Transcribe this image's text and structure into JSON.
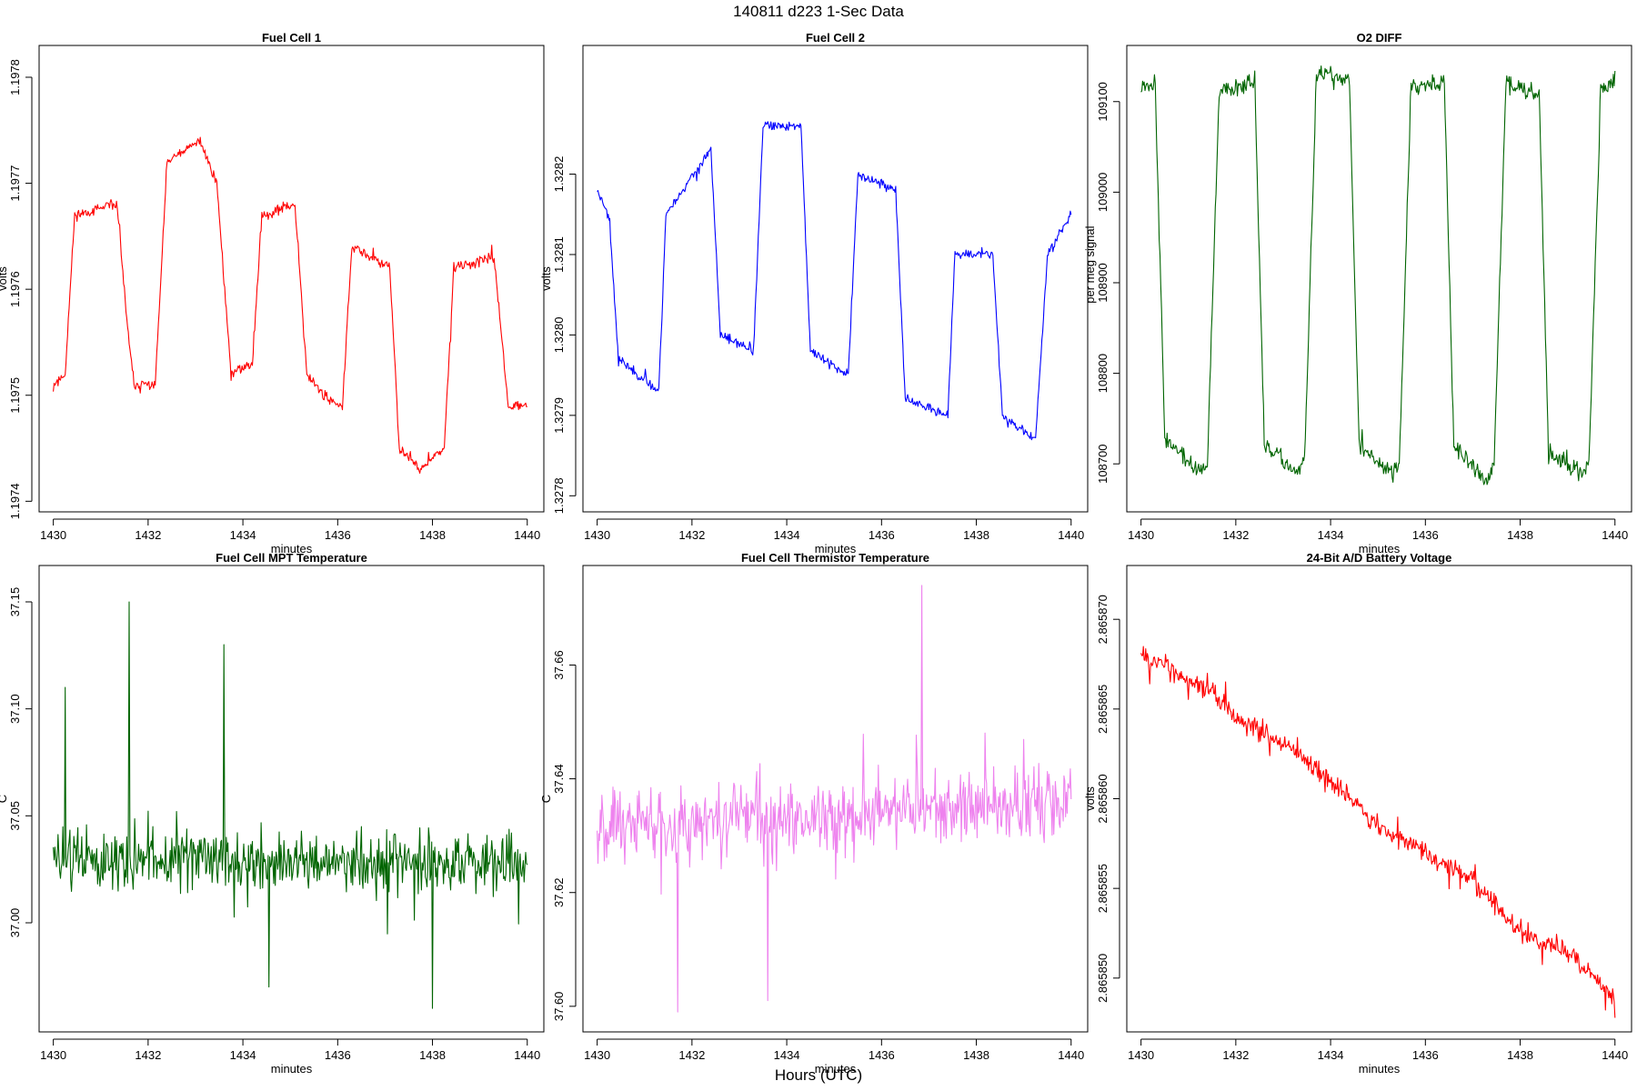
{
  "suptitle": "140811   d223   1-Sec Data",
  "global_xlabel": "Hours (UTC)",
  "colors": {
    "red": "#ff0000",
    "blue": "#0000ff",
    "green": "#006400",
    "violet": "#ee82ee"
  },
  "chart_data": [
    {
      "id": "fc1",
      "type": "line",
      "title": "Fuel Cell 1",
      "xlabel": "minutes",
      "ylabel": "volts",
      "color": "#ff0000",
      "xlim": [
        1429.7,
        1440.35
      ],
      "ylim": [
        1.19739,
        1.19783
      ],
      "xticks": [
        1430,
        1432,
        1434,
        1436,
        1438,
        1440
      ],
      "xticklabels": [
        "1430",
        "1432",
        "1434",
        "1436",
        "1438",
        "1440"
      ],
      "yticks": [
        1.1974,
        1.1975,
        1.1976,
        1.1977,
        1.1978
      ],
      "yticklabels": [
        "1.1974",
        "1.1975",
        "1.1976",
        "1.1977",
        "1.1978"
      ],
      "levels": [
        [
          1430.0,
          1.19751
        ],
        [
          1430.25,
          1.19752
        ],
        [
          1430.45,
          1.19767
        ],
        [
          1431.35,
          1.19768
        ],
        [
          1431.55,
          1.19757
        ],
        [
          1431.7,
          1.19751
        ],
        [
          1432.15,
          1.19751
        ],
        [
          1432.4,
          1.19772
        ],
        [
          1433.1,
          1.19774
        ],
        [
          1433.45,
          1.1977
        ],
        [
          1433.75,
          1.19752
        ],
        [
          1434.2,
          1.19753
        ],
        [
          1434.4,
          1.19767
        ],
        [
          1435.1,
          1.19768
        ],
        [
          1435.35,
          1.19752
        ],
        [
          1435.7,
          1.1975
        ],
        [
          1436.1,
          1.19749
        ],
        [
          1436.3,
          1.19764
        ],
        [
          1437.1,
          1.19762
        ],
        [
          1437.3,
          1.19745
        ],
        [
          1437.75,
          1.19743
        ],
        [
          1438.25,
          1.19745
        ],
        [
          1438.45,
          1.19762
        ],
        [
          1439.3,
          1.19763
        ],
        [
          1439.6,
          1.19749
        ],
        [
          1440.0,
          1.19749
        ]
      ],
      "noise": 7e-06,
      "seed": 11
    },
    {
      "id": "fc2",
      "type": "line",
      "title": "Fuel Cell 2",
      "xlabel": "minutes",
      "ylabel": "volts",
      "color": "#0000ff",
      "xlim": [
        1429.7,
        1440.35
      ],
      "ylim": [
        1.32778,
        1.32836
      ],
      "xticks": [
        1430,
        1432,
        1434,
        1436,
        1438,
        1440
      ],
      "xticklabels": [
        "1430",
        "1432",
        "1434",
        "1436",
        "1438",
        "1440"
      ],
      "yticks": [
        1.3278,
        1.3279,
        1.328,
        1.3281,
        1.3282
      ],
      "yticklabels": [
        "1.3278",
        "1.3279",
        "1.3280",
        "1.3281",
        "1.3282"
      ],
      "levels": [
        [
          1430.0,
          1.32818
        ],
        [
          1430.25,
          1.32815
        ],
        [
          1430.45,
          1.32797
        ],
        [
          1431.3,
          1.32793
        ],
        [
          1431.45,
          1.32815
        ],
        [
          1432.4,
          1.32823
        ],
        [
          1432.6,
          1.328
        ],
        [
          1433.3,
          1.32798
        ],
        [
          1433.5,
          1.32826
        ],
        [
          1434.3,
          1.32826
        ],
        [
          1434.5,
          1.32798
        ],
        [
          1435.3,
          1.32795
        ],
        [
          1435.5,
          1.3282
        ],
        [
          1436.3,
          1.32818
        ],
        [
          1436.5,
          1.32792
        ],
        [
          1437.4,
          1.3279
        ],
        [
          1437.55,
          1.3281
        ],
        [
          1438.35,
          1.3281
        ],
        [
          1438.55,
          1.3279
        ],
        [
          1439.25,
          1.32787
        ],
        [
          1439.5,
          1.3281
        ],
        [
          1440.0,
          1.32815
        ]
      ],
      "noise": 8e-06,
      "seed": 23
    },
    {
      "id": "o2",
      "type": "line",
      "title": "O2 DIFF",
      "xlabel": "minutes",
      "ylabel": "per meg signal",
      "color": "#006400",
      "xlim": [
        1429.7,
        1440.35
      ],
      "ylim": [
        108647,
        109162
      ],
      "xticks": [
        1430,
        1432,
        1434,
        1436,
        1438,
        1440
      ],
      "xticklabels": [
        "1430",
        "1432",
        "1434",
        "1436",
        "1438",
        "1440"
      ],
      "yticks": [
        108700,
        108800,
        108900,
        109000,
        109100
      ],
      "yticklabels": [
        "108700",
        "108800",
        "108900",
        "109000",
        "109100"
      ],
      "levels": [
        [
          1430.0,
          109120
        ],
        [
          1430.3,
          109120
        ],
        [
          1430.5,
          108730
        ],
        [
          1431.2,
          108690
        ],
        [
          1431.4,
          108700
        ],
        [
          1431.65,
          109110
        ],
        [
          1432.4,
          109125
        ],
        [
          1432.6,
          108720
        ],
        [
          1433.3,
          108690
        ],
        [
          1433.45,
          108700
        ],
        [
          1433.7,
          109130
        ],
        [
          1434.4,
          109125
        ],
        [
          1434.6,
          108720
        ],
        [
          1435.3,
          108690
        ],
        [
          1435.45,
          108700
        ],
        [
          1435.7,
          109120
        ],
        [
          1436.4,
          109120
        ],
        [
          1436.6,
          108720
        ],
        [
          1437.3,
          108680
        ],
        [
          1437.45,
          108700
        ],
        [
          1437.7,
          109120
        ],
        [
          1438.4,
          109110
        ],
        [
          1438.6,
          108710
        ],
        [
          1439.3,
          108690
        ],
        [
          1439.45,
          108700
        ],
        [
          1439.7,
          109110
        ],
        [
          1440.0,
          109125
        ]
      ],
      "noise": 14,
      "seed": 37
    },
    {
      "id": "mpt",
      "type": "line",
      "title": "Fuel Cell MPT Temperature",
      "xlabel": "minutes",
      "ylabel": "C",
      "color": "#006400",
      "xlim": [
        1429.7,
        1440.35
      ],
      "ylim": [
        36.949,
        37.167
      ],
      "xticks": [
        1430,
        1432,
        1434,
        1436,
        1438,
        1440
      ],
      "xticklabels": [
        "1430",
        "1432",
        "1434",
        "1436",
        "1438",
        "1440"
      ],
      "yticks": [
        37.0,
        37.05,
        37.1,
        37.15
      ],
      "yticklabels": [
        "37.00",
        "37.05",
        "37.10",
        "37.15"
      ],
      "levels": [
        [
          1430.0,
          37.03
        ],
        [
          1440.0,
          37.027
        ]
      ],
      "noise": 0.02,
      "spikes": [
        [
          1431.6,
          37.15
        ],
        [
          1433.6,
          37.13
        ],
        [
          1438.0,
          36.96
        ],
        [
          1430.25,
          37.11
        ],
        [
          1434.55,
          36.97
        ]
      ],
      "seed": 51
    },
    {
      "id": "thermistor",
      "type": "line",
      "title": "Fuel Cell Thermistor Temperature",
      "xlabel": "minutes",
      "ylabel": "C",
      "color": "#ee82ee",
      "xlim": [
        1429.7,
        1440.35
      ],
      "ylim": [
        37.5955,
        37.6775
      ],
      "xticks": [
        1430,
        1432,
        1434,
        1436,
        1438,
        1440
      ],
      "xticklabels": [
        "1430",
        "1432",
        "1434",
        "1436",
        "1438",
        "1440"
      ],
      "yticks": [
        37.6,
        37.62,
        37.64,
        37.66
      ],
      "yticklabels": [
        "37.60",
        "37.62",
        "37.64",
        "37.66"
      ],
      "levels": [
        [
          1430.0,
          37.632
        ],
        [
          1440.0,
          37.636
        ]
      ],
      "noise": 0.009,
      "spikes": [
        [
          1436.85,
          37.674
        ],
        [
          1431.7,
          37.599
        ],
        [
          1433.6,
          37.601
        ]
      ],
      "seed": 67
    },
    {
      "id": "battery",
      "type": "line",
      "title": "24-Bit A/D Battery Voltage",
      "xlabel": "minutes",
      "ylabel": "volts",
      "color": "#ff0000",
      "xlim": [
        1429.7,
        1440.35
      ],
      "ylim": [
        2.865847,
        2.865873
      ],
      "xticks": [
        1430,
        1432,
        1434,
        1436,
        1438,
        1440
      ],
      "xticklabels": [
        "1430",
        "1432",
        "1434",
        "1436",
        "1438",
        "1440"
      ],
      "yticks": [
        2.86585,
        2.865855,
        2.86586,
        2.865865,
        2.86587
      ],
      "yticklabels": [
        "2.865850",
        "2.865855",
        "2.865860",
        "2.865865",
        "2.865870"
      ],
      "levels": [
        [
          1430.0,
          2.865868
        ],
        [
          1431.5,
          2.865866
        ],
        [
          1432.0,
          2.8658645
        ],
        [
          1433.0,
          2.865863
        ],
        [
          1434.0,
          2.865861
        ],
        [
          1435.0,
          2.8658585
        ],
        [
          1436.0,
          2.865857
        ],
        [
          1437.0,
          2.8658555
        ],
        [
          1438.0,
          2.8658525
        ],
        [
          1439.0,
          2.8658515
        ],
        [
          1440.0,
          2.8658488
        ]
      ],
      "noise": 8e-07,
      "seed": 83
    }
  ]
}
